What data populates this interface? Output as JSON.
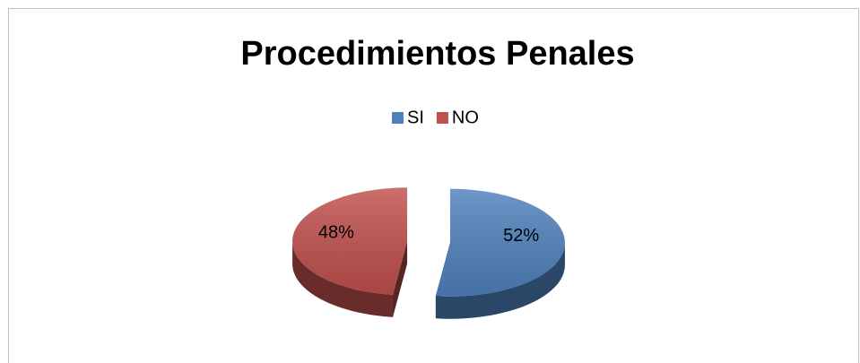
{
  "chart_data": {
    "type": "pie",
    "title": "Procedimientos Penales",
    "categories": [
      "SI",
      "NO"
    ],
    "values": [
      52,
      48
    ],
    "value_labels": [
      "52%",
      "48%"
    ],
    "colors": [
      "#4f81bd",
      "#c0504d"
    ],
    "legend": "top"
  }
}
